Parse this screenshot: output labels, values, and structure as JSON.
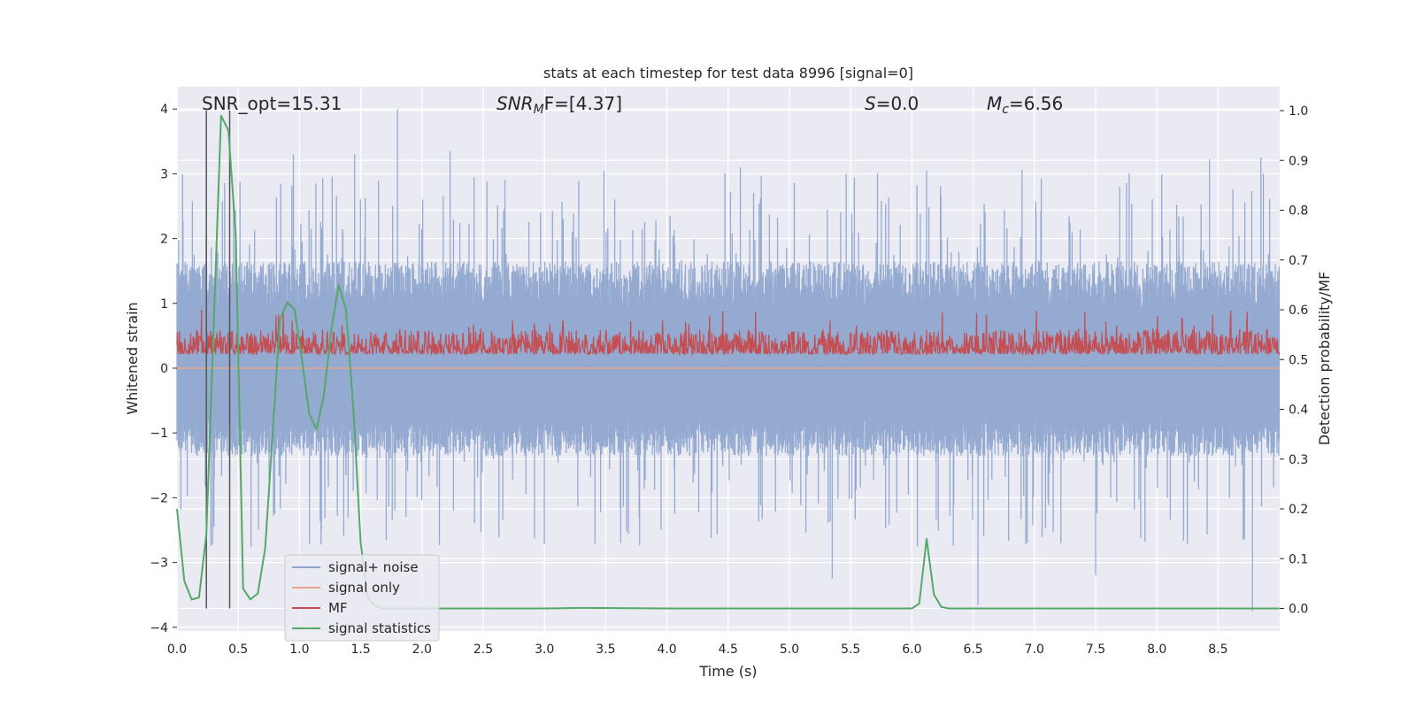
{
  "chart_data": {
    "type": "line",
    "title": "stats at each timestep for test data 8996 [signal=0]",
    "xlabel": "Time (s)",
    "ylabel": "Whitened strain",
    "y2label": "Detection probability/MF",
    "xlim": [
      0.0,
      9.0
    ],
    "ylim": [
      -4.1,
      4.1
    ],
    "y2lim": [
      -0.05,
      1.04
    ],
    "x_ticks": [
      "0.0",
      "0.5",
      "1.0",
      "1.5",
      "2.0",
      "2.5",
      "3.0",
      "3.5",
      "4.0",
      "4.5",
      "5.0",
      "5.5",
      "6.0",
      "6.5",
      "7.0",
      "7.5",
      "8.0",
      "8.5"
    ],
    "y_ticks": [
      "4",
      "3",
      "2",
      "1",
      "0",
      "−1",
      "−2",
      "−3",
      "−4"
    ],
    "y2_ticks": [
      "1.0",
      "0.9",
      "0.8",
      "0.7",
      "0.6",
      "0.5",
      "0.4",
      "0.3",
      "0.2",
      "0.1",
      "0.0"
    ],
    "grid": true,
    "legend_position": "lower-left",
    "annotations": {
      "snr_opt": "SNR_opt=15.31",
      "snr_mf_main": "SNR",
      "snr_mf_sub": "M",
      "snr_mf_rest": "F=[4.37]",
      "s_main": "S",
      "s_rest": "=0.0",
      "mc_main": "M",
      "mc_sub": "c",
      "mc_rest": "=6.56"
    },
    "vertical_lines_x": [
      0.24,
      0.43
    ],
    "series": [
      {
        "name": "signal+ noise",
        "color": "#8fa6cf",
        "noise_envelope": {
          "typical_pos": 1.7,
          "typical_neg": -1.4,
          "peak_pos": 4.0,
          "peak_neg": -3.7
        },
        "notable_peaks": [
          [
            1.8,
            4.0
          ],
          [
            2.23,
            3.35
          ],
          [
            0.95,
            3.3
          ],
          [
            1.45,
            3.3
          ],
          [
            4.6,
            3.1
          ],
          [
            6.12,
            3.05
          ],
          [
            8.43,
            3.22
          ],
          [
            8.85,
            3.25
          ],
          [
            6.54,
            -3.65
          ],
          [
            8.78,
            -3.75
          ],
          [
            5.35,
            -3.25
          ],
          [
            7.5,
            -3.2
          ]
        ]
      },
      {
        "name": "signal only",
        "color": "#e8a58b",
        "axis": "left",
        "values_desc": "flat at 0"
      },
      {
        "name": "MF",
        "color": "#c44e52",
        "axis": "right",
        "typical_range": [
          0.49,
          0.56
        ],
        "peak": 0.6
      },
      {
        "name": "signal statistics",
        "color": "#55a868",
        "axis": "right",
        "x": [
          0.0,
          0.06,
          0.12,
          0.18,
          0.24,
          0.3,
          0.36,
          0.42,
          0.48,
          0.54,
          0.6,
          0.66,
          0.72,
          0.78,
          0.84,
          0.9,
          0.96,
          1.02,
          1.08,
          1.14,
          1.2,
          1.26,
          1.32,
          1.38,
          1.44,
          1.5,
          1.56,
          1.62,
          1.68,
          1.74,
          2.0,
          3.0,
          3.3,
          4.0,
          5.0,
          6.0,
          6.06,
          6.12,
          6.18,
          6.24,
          6.3,
          7.0,
          8.0,
          9.0
        ],
        "values": [
          0.2,
          0.055,
          0.018,
          0.022,
          0.15,
          0.57,
          0.99,
          0.96,
          0.75,
          0.04,
          0.018,
          0.03,
          0.12,
          0.35,
          0.58,
          0.615,
          0.6,
          0.5,
          0.39,
          0.36,
          0.43,
          0.56,
          0.65,
          0.6,
          0.4,
          0.13,
          0.02,
          0.005,
          0.0,
          0.0,
          0.0,
          0.0,
          0.001,
          0.0,
          0.0,
          0.0,
          0.01,
          0.14,
          0.028,
          0.003,
          0.0,
          0.0,
          0.0,
          0.0
        ]
      }
    ]
  }
}
